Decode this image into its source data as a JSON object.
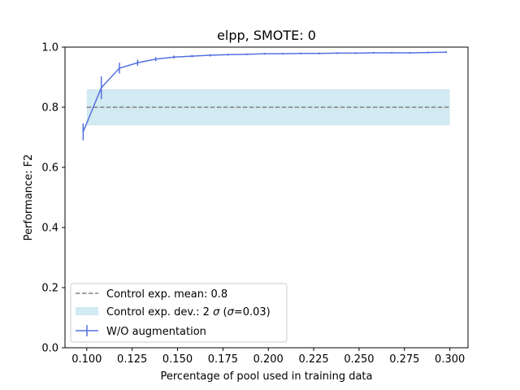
{
  "chart_data": {
    "type": "line",
    "title": "elpp, SMOTE: 0",
    "xlabel": "Percentage of pool used in training data",
    "ylabel": "Performance: F2",
    "xlim": [
      0.088,
      0.31
    ],
    "ylim": [
      0.0,
      1.0
    ],
    "x_ticks": [
      0.1,
      0.125,
      0.15,
      0.175,
      0.2,
      0.225,
      0.25,
      0.275,
      0.3
    ],
    "x_tick_labels": [
      "0.100",
      "0.125",
      "0.150",
      "0.175",
      "0.200",
      "0.225",
      "0.250",
      "0.275",
      "0.300"
    ],
    "y_ticks": [
      0.0,
      0.2,
      0.4,
      0.6,
      0.8,
      1.0
    ],
    "y_tick_labels": [
      "0.0",
      "0.2",
      "0.4",
      "0.6",
      "0.8",
      "1.0"
    ],
    "grid": false,
    "legend_position": "lower-left",
    "control_band": {
      "label_prefix": "Control exp. dev.: 2 ",
      "label_sigma": "σ",
      "label_mid": " (",
      "label_sigma2": "σ",
      "label_suffix": "=0.03)",
      "x_range": [
        0.1,
        0.3
      ],
      "y_range": [
        0.74,
        0.86
      ],
      "color": "#add8e6"
    },
    "control_mean": {
      "label": "Control exp. mean: 0.8",
      "value": 0.8,
      "x_range": [
        0.1,
        0.3
      ],
      "color": "#808080"
    },
    "series": [
      {
        "name": "W/O augmentation",
        "color": "#5470e0",
        "x": [
          0.098,
          0.108,
          0.118,
          0.128,
          0.138,
          0.148,
          0.158,
          0.168,
          0.178,
          0.188,
          0.198,
          0.208,
          0.218,
          0.228,
          0.238,
          0.248,
          0.258,
          0.268,
          0.278,
          0.288,
          0.298
        ],
        "y": [
          0.718,
          0.865,
          0.93,
          0.948,
          0.96,
          0.967,
          0.97,
          0.973,
          0.975,
          0.976,
          0.978,
          0.978,
          0.979,
          0.979,
          0.98,
          0.98,
          0.981,
          0.981,
          0.981,
          0.982,
          0.983
        ],
        "err": [
          0.028,
          0.038,
          0.018,
          0.01,
          0.007,
          0.005,
          0.004,
          0.004,
          0.003,
          0.003,
          0.003,
          0.003,
          0.003,
          0.003,
          0.003,
          0.003,
          0.003,
          0.003,
          0.003,
          0.003,
          0.003
        ]
      }
    ]
  }
}
